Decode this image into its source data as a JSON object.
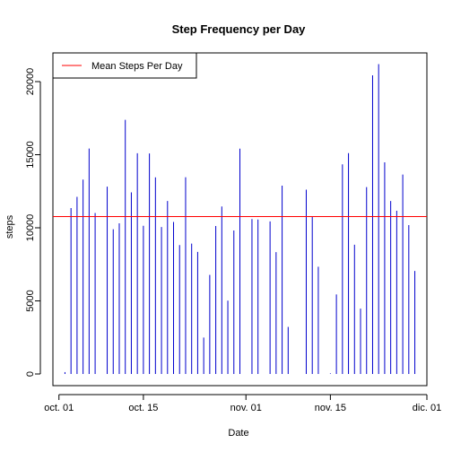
{
  "colors": {
    "bars": "#0000cd",
    "mean_line": "#ff0000",
    "axis": "#000000",
    "background": "#ffffff"
  },
  "chart_data": {
    "type": "bar",
    "title": "Step Frequency per Day",
    "xlabel": "Date",
    "ylabel": "steps",
    "x_axis_type": "date",
    "xlim": [
      "2012-09-30",
      "2012-12-01"
    ],
    "ylim": [
      0,
      21500
    ],
    "x_ticks": [
      {
        "date": "2012-10-01",
        "label": "oct. 01"
      },
      {
        "date": "2012-10-15",
        "label": "oct. 15"
      },
      {
        "date": "2012-11-01",
        "label": "nov. 01"
      },
      {
        "date": "2012-11-15",
        "label": "nov. 15"
      },
      {
        "date": "2012-12-01",
        "label": "dic. 01"
      }
    ],
    "y_ticks": [
      0,
      5000,
      10000,
      15000,
      20000
    ],
    "grid": false,
    "legend": {
      "placement": "top-left",
      "entries": [
        {
          "label": "Mean Steps Per Day",
          "color": "#ff0000"
        }
      ]
    },
    "mean_line": {
      "name": "Mean Steps Per Day",
      "value": 10766
    },
    "series": [
      {
        "x": [
          "2012-10-02",
          "2012-10-03",
          "2012-10-04",
          "2012-10-05",
          "2012-10-06",
          "2012-10-07",
          "2012-10-09",
          "2012-10-10",
          "2012-10-11",
          "2012-10-12",
          "2012-10-13",
          "2012-10-14",
          "2012-10-15",
          "2012-10-16",
          "2012-10-17",
          "2012-10-18",
          "2012-10-19",
          "2012-10-20",
          "2012-10-21",
          "2012-10-22",
          "2012-10-23",
          "2012-10-24",
          "2012-10-25",
          "2012-10-26",
          "2012-10-27",
          "2012-10-28",
          "2012-10-29",
          "2012-10-30",
          "2012-10-31",
          "2012-11-02",
          "2012-11-03",
          "2012-11-05",
          "2012-11-06",
          "2012-11-07",
          "2012-11-08",
          "2012-11-11",
          "2012-11-12",
          "2012-11-13",
          "2012-11-15",
          "2012-11-16",
          "2012-11-17",
          "2012-11-18",
          "2012-11-19",
          "2012-11-20",
          "2012-11-21",
          "2012-11-22",
          "2012-11-23",
          "2012-11-24",
          "2012-11-25",
          "2012-11-26",
          "2012-11-27",
          "2012-11-28",
          "2012-11-29"
        ],
        "values": [
          126,
          11352,
          12116,
          13294,
          15420,
          11015,
          12811,
          9900,
          10304,
          17382,
          12426,
          15098,
          10139,
          15084,
          13452,
          10056,
          11829,
          10395,
          8821,
          13460,
          8918,
          8355,
          2492,
          6778,
          10119,
          11458,
          5018,
          9819,
          15414,
          10600,
          10571,
          10439,
          8334,
          12883,
          3219,
          12608,
          10765,
          7336,
          41,
          5441,
          14339,
          15110,
          8841,
          4472,
          12787,
          20427,
          21194,
          14478,
          11834,
          11162,
          13646,
          10183,
          7047
        ]
      }
    ]
  }
}
